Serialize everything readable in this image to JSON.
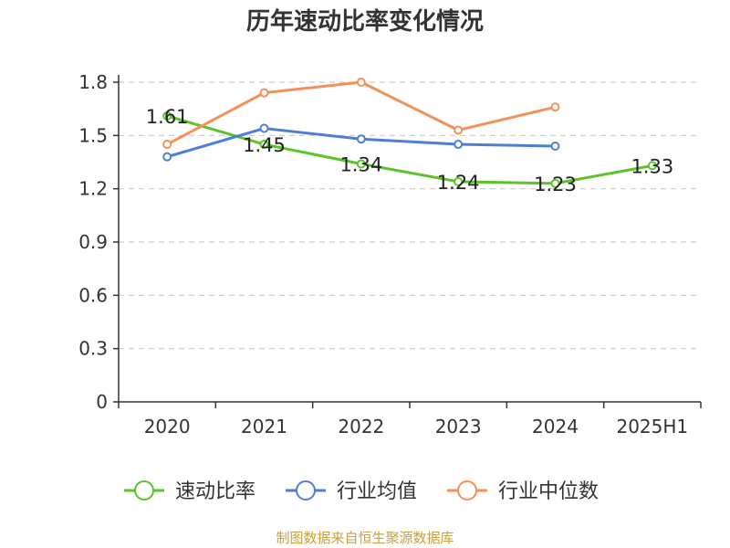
{
  "chart_data": {
    "type": "line",
    "title": "历年速动比率变化情况",
    "categories": [
      "2020",
      "2021",
      "2022",
      "2023",
      "2024",
      "2025H1"
    ],
    "ylim": [
      0,
      1.8
    ],
    "yticks": [
      "0",
      "0.3",
      "0.6",
      "0.9",
      "1.2",
      "1.5",
      "1.8"
    ],
    "grid": true,
    "legend_position": "bottom",
    "series": [
      {
        "name": "速动比率",
        "color": "#5cc42a",
        "values": [
          1.61,
          1.45,
          1.34,
          1.24,
          1.23,
          1.33
        ],
        "show_labels": true,
        "labels": [
          "1.61",
          "1.45",
          "1.34",
          "1.24",
          "1.23",
          "1.33"
        ]
      },
      {
        "name": "行业均值",
        "color": "#4d7fd6",
        "values": [
          1.38,
          1.54,
          1.48,
          1.45,
          1.44,
          null
        ],
        "show_labels": false
      },
      {
        "name": "行业中位数",
        "color": "#f59058",
        "values": [
          1.45,
          1.74,
          1.8,
          1.53,
          1.66,
          null
        ],
        "show_labels": false
      }
    ]
  },
  "source": "制图数据来自恒生聚源数据库"
}
